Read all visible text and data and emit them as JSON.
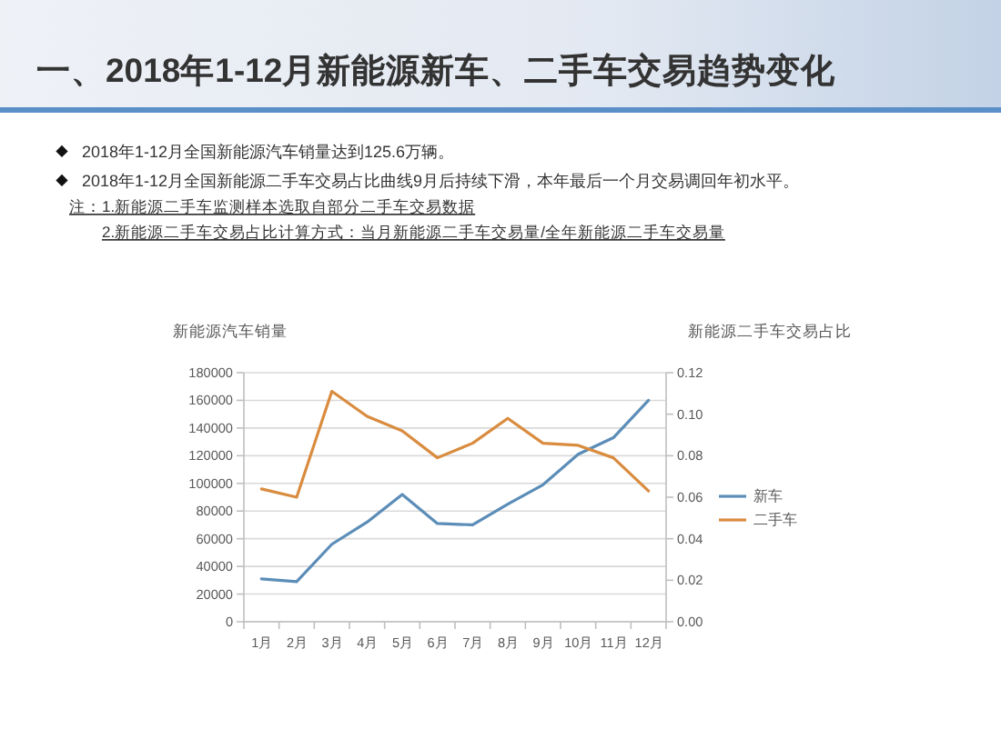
{
  "chart_data": {
    "type": "line",
    "title": "一、2018年1-12月新能源新车、二手车交易趋势变化",
    "annotations": [
      "2018年1-12月全国新能源汽车销量达到125.6万辆。",
      "2018年1-12月全国新能源二手车交易占比曲线9月后持续下滑，本年最后一个月交易调回年初水平。",
      "注：1.新能源二手车监测样本选取自部分二手车交易数据",
      "2.新能源二手车交易占比计算方式：当月新能源二手车交易量/全年新能源二手车交易量"
    ],
    "ylabel": "新能源汽车销量",
    "y2label": "新能源二手车交易占比",
    "categories": [
      "1月",
      "2月",
      "3月",
      "4月",
      "5月",
      "6月",
      "7月",
      "8月",
      "9月",
      "10月",
      "11月",
      "12月"
    ],
    "series": [
      {
        "name": "新车",
        "color": "#5b8db8",
        "values": [
          31000,
          29000,
          56000,
          72000,
          92000,
          71000,
          70000,
          85000,
          99000,
          121000,
          133000,
          160000
        ]
      },
      {
        "name": "二手车",
        "color": "#d98c3f",
        "axis": "y2",
        "values": [
          0.064,
          0.06,
          0.111,
          0.099,
          0.092,
          0.079,
          0.086,
          0.098,
          0.086,
          0.085,
          0.079,
          0.063
        ]
      }
    ],
    "ylim": [
      0,
      180000
    ],
    "yticks": [
      0,
      20000,
      40000,
      60000,
      80000,
      100000,
      120000,
      140000,
      160000,
      180000
    ],
    "y2lim": [
      0,
      0.12
    ],
    "y2ticks": [
      {
        "value": 0,
        "label": "0.00"
      },
      0.02,
      0.04,
      0.06,
      0.08,
      {
        "value": 0.1,
        "label": "0.10"
      },
      0.12
    ],
    "grid": "y",
    "legend": "right"
  }
}
